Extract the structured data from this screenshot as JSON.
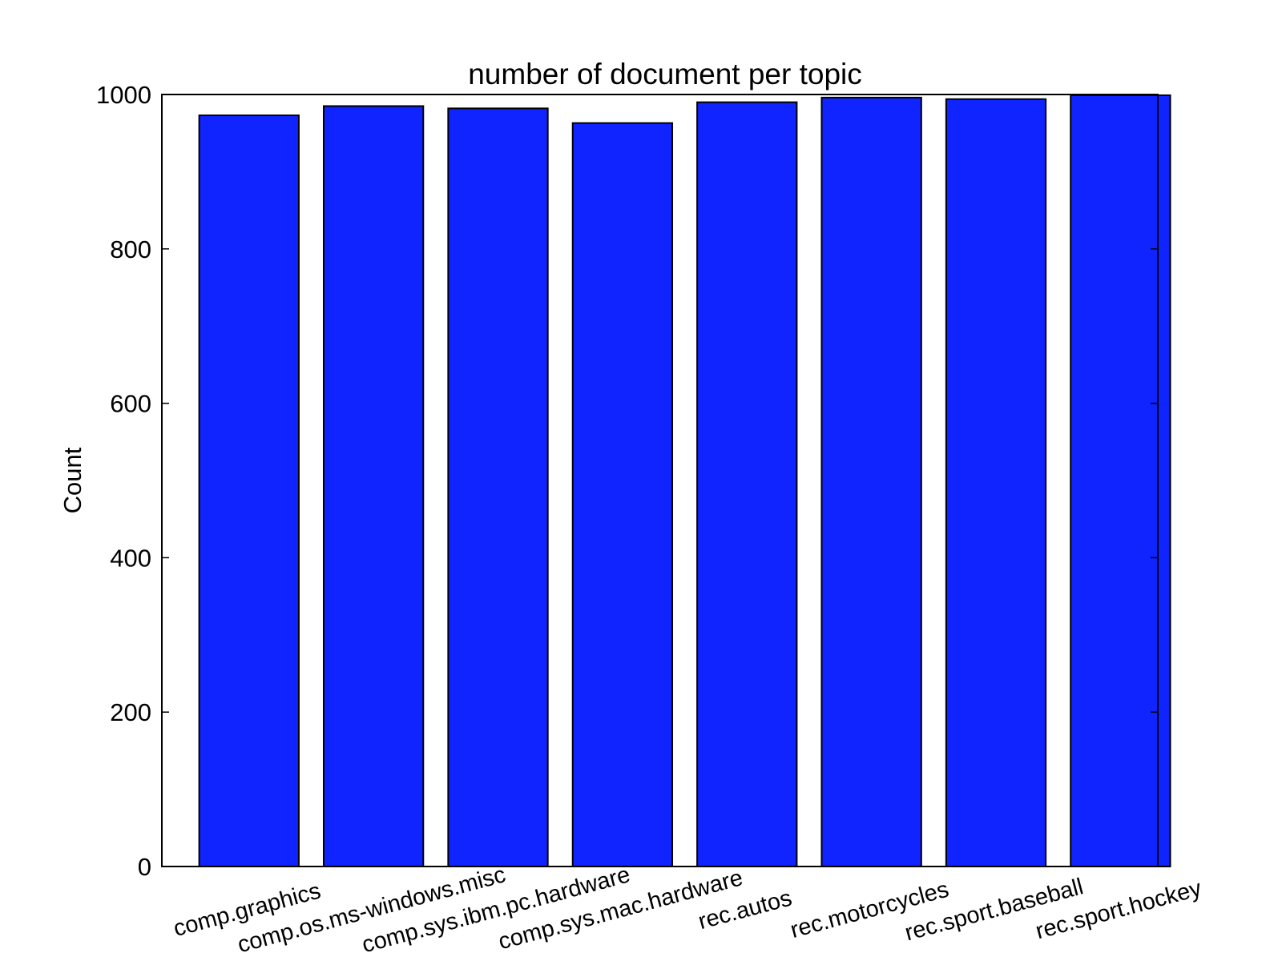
{
  "chart_data": {
    "type": "bar",
    "title": "number of document per topic",
    "xlabel": "",
    "ylabel": "Count",
    "categories": [
      "comp.graphics",
      "comp.os.ms-windows.misc",
      "comp.sys.ibm.pc.hardware",
      "comp.sys.mac.hardware",
      "rec.autos",
      "rec.motorcycles",
      "rec.sport.baseball",
      "rec.sport.hockey"
    ],
    "values": [
      973,
      985,
      982,
      963,
      990,
      996,
      994,
      999
    ],
    "ylim": [
      0,
      1000
    ],
    "yticks": [
      0,
      200,
      400,
      600,
      800,
      1000
    ],
    "ytick_labels": [
      "0",
      "200",
      "400",
      "600",
      "800",
      "1000"
    ],
    "grid": false,
    "legend": "none",
    "colors": {
      "bar_fill": "#0f24ff",
      "bar_edge": "#000000",
      "axes": "#000000"
    }
  }
}
